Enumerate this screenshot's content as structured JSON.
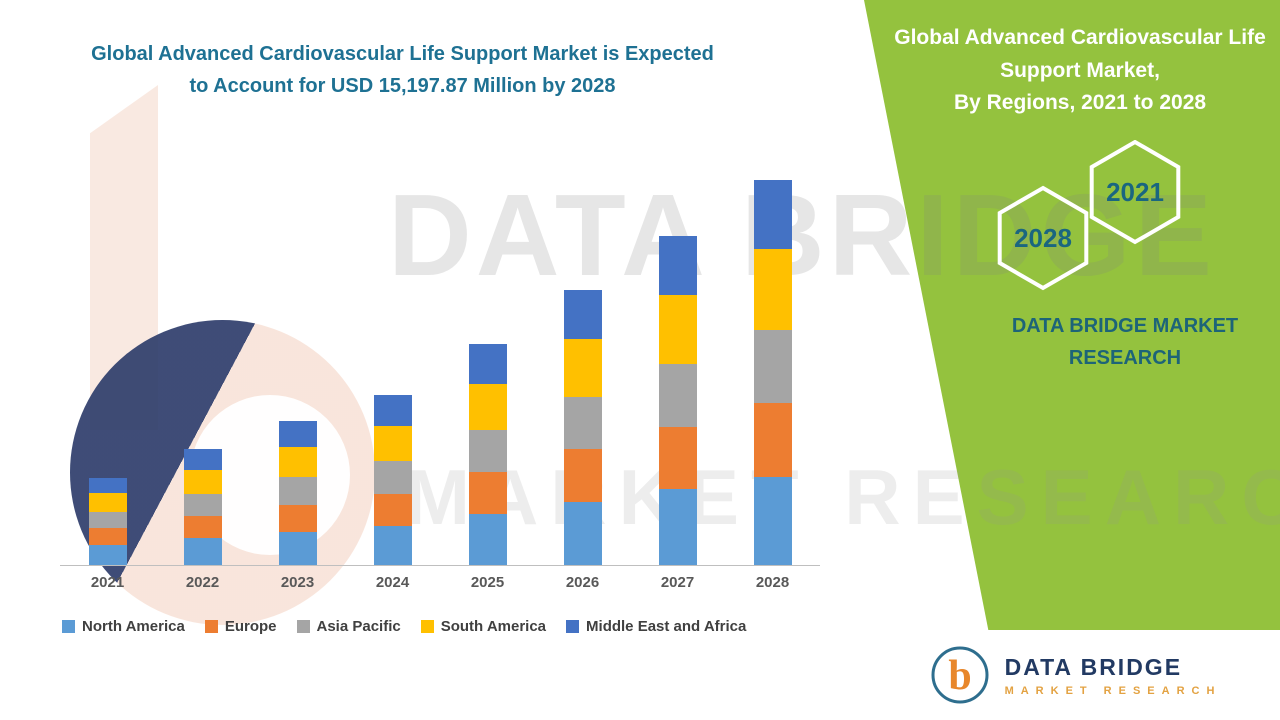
{
  "header": {
    "chart_title_line1": "Global Advanced Cardiovascular Life Support Market is Expected",
    "chart_title_line2": "to Account for USD 15,197.87 Million by 2028"
  },
  "right_panel": {
    "bg_color": "#94C23E",
    "title_line1": "Global Advanced Cardiovascular Life",
    "title_line2": "Support Market,",
    "title_line3": "By Regions, 2021 to 2028",
    "hexagon_back_label": "2028",
    "hexagon_front_label": "2021",
    "hexagon_text_color": "#1A6680",
    "brand_text_line1": "DATA BRIDGE MARKET",
    "brand_text_line2": "RESEARCH"
  },
  "watermark": {
    "line1": "DATA BRIDGE",
    "line2": "MARKET RESEARCH"
  },
  "logo_card": {
    "brand_name": "DATA BRIDGE",
    "brand_subtitle": "MARKET RESEARCH",
    "logo_icon": "data-bridge-b-circle"
  },
  "chart_data": {
    "type": "bar",
    "stacked": true,
    "title": "Global Advanced Cardiovascular Life Support Market is Expected to Account for USD 15,197.87 Million by 2028",
    "unit": "USD Million",
    "categories": [
      "2021",
      "2022",
      "2023",
      "2024",
      "2025",
      "2026",
      "2027",
      "2028"
    ],
    "series": [
      {
        "name": "North America",
        "color": "#5B9BD5",
        "values": [
          794,
          1050,
          1305,
          1542,
          2008,
          2501,
          2993,
          3496
        ]
      },
      {
        "name": "Europe",
        "color": "#ED7D31",
        "values": [
          656,
          867,
          1078,
          1274,
          1659,
          2066,
          2473,
          2888
        ]
      },
      {
        "name": "Asia Pacific",
        "color": "#A5A5A5",
        "values": [
          656,
          867,
          1078,
          1274,
          1659,
          2066,
          2473,
          2888
        ]
      },
      {
        "name": "South America",
        "color": "#FFC000",
        "values": [
          725,
          958,
          1192,
          1408,
          1833,
          2283,
          2733,
          3192
        ]
      },
      {
        "name": "Middle East and Africa",
        "color": "#4472C4",
        "values": [
          621,
          821,
          1021,
          1207,
          1571,
          1957,
          2343,
          2736
        ]
      }
    ],
    "ylim": [
      0,
      15200
    ],
    "grid": false,
    "legend_position": "bottom",
    "note": "Values estimated from bar heights; 2028 total ≈ 15,197.87 USD Million per title"
  }
}
